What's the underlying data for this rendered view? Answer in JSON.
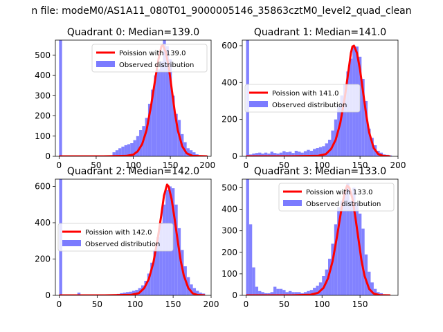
{
  "figure": {
    "suptitle": "n file: modeM0/AS1A11_080T01_9000005146_35863cztM0_level2_quad_clean"
  },
  "legend_labels": {
    "line_prefix": "Poission with ",
    "hist": "Observed distribution"
  },
  "colors": {
    "hist": "#7b7bff",
    "line": "#ff0000",
    "axis": "#000000"
  },
  "chart_data": [
    {
      "type": "bar",
      "title": "Quadrant 0: Median=139.0",
      "median": 139.0,
      "line_label": "Poission with 139.0",
      "legend_position": "upper-right",
      "xlim": [
        -5,
        205
      ],
      "ylim": [
        0,
        575
      ],
      "xticks": [
        0,
        50,
        100,
        150,
        200
      ],
      "yticks": [
        0,
        100,
        200,
        300,
        400,
        500
      ],
      "bin_width": 4,
      "hist": {
        "x": [
          0,
          4,
          8,
          12,
          16,
          20,
          24,
          28,
          32,
          36,
          40,
          44,
          48,
          52,
          56,
          60,
          64,
          68,
          72,
          76,
          80,
          84,
          88,
          92,
          96,
          100,
          104,
          108,
          112,
          116,
          120,
          124,
          128,
          132,
          136,
          140,
          144,
          148,
          152,
          156,
          160,
          164,
          168,
          172,
          176,
          180,
          184,
          188,
          192,
          196
        ],
        "values": [
          575,
          2,
          2,
          2,
          2,
          2,
          2,
          2,
          2,
          2,
          2,
          2,
          2,
          2,
          2,
          2,
          2,
          5,
          20,
          30,
          40,
          48,
          55,
          60,
          65,
          80,
          100,
          130,
          150,
          190,
          260,
          330,
          400,
          430,
          470,
          575,
          545,
          480,
          300,
          210,
          180,
          110,
          70,
          40,
          30,
          20,
          10,
          5,
          3,
          2
        ]
      },
      "poisson": {
        "x": [
          0,
          60,
          90,
          100,
          106,
          112,
          118,
          124,
          130,
          134,
          138,
          140,
          144,
          148,
          152,
          156,
          160,
          166,
          172,
          180,
          200
        ],
        "y": [
          0,
          0,
          2,
          8,
          25,
          60,
          130,
          250,
          390,
          480,
          545,
          550,
          515,
          440,
          330,
          220,
          130,
          50,
          15,
          2,
          0
        ]
      }
    },
    {
      "type": "bar",
      "title": "Quadrant 1: Median=141.0",
      "median": 141.0,
      "line_label": "Poission with 141.0",
      "legend_position": "center-left",
      "xlim": [
        -5,
        200
      ],
      "ylim": [
        0,
        630
      ],
      "xticks": [
        0,
        50,
        100,
        150,
        200
      ],
      "yticks": [
        0,
        200,
        400,
        600
      ],
      "bin_width": 4,
      "hist": {
        "x": [
          0,
          4,
          8,
          12,
          16,
          20,
          24,
          28,
          32,
          36,
          40,
          44,
          48,
          52,
          56,
          60,
          64,
          68,
          72,
          76,
          80,
          84,
          88,
          92,
          96,
          100,
          104,
          108,
          112,
          116,
          120,
          124,
          128,
          132,
          136,
          140,
          144,
          148,
          152,
          156,
          160,
          164,
          168,
          172,
          176,
          180,
          184,
          188
        ],
        "values": [
          630,
          10,
          15,
          18,
          20,
          15,
          20,
          15,
          25,
          18,
          15,
          20,
          28,
          22,
          25,
          18,
          30,
          25,
          20,
          28,
          35,
          30,
          40,
          45,
          50,
          55,
          70,
          90,
          140,
          200,
          270,
          330,
          390,
          460,
          530,
          600,
          595,
          540,
          420,
          300,
          150,
          100,
          60,
          30,
          20,
          10,
          8,
          5
        ]
      },
      "poisson": {
        "x": [
          0,
          60,
          95,
          105,
          112,
          118,
          124,
          130,
          134,
          138,
          140,
          142,
          146,
          150,
          154,
          158,
          162,
          168,
          174,
          180,
          190
        ],
        "y": [
          0,
          0,
          3,
          12,
          40,
          90,
          180,
          320,
          440,
          560,
          595,
          600,
          560,
          470,
          350,
          230,
          130,
          45,
          12,
          3,
          0
        ]
      }
    },
    {
      "type": "bar",
      "title": "Quadrant 2: Median=142.0",
      "median": 142.0,
      "line_label": "Poission with 142.0",
      "legend_position": "center-left",
      "xlim": [
        -5,
        200
      ],
      "ylim": [
        0,
        640
      ],
      "xticks": [
        0,
        50,
        100,
        150,
        200
      ],
      "yticks": [
        0,
        200,
        400,
        600
      ],
      "bin_width": 4,
      "hist": {
        "x": [
          0,
          4,
          8,
          12,
          16,
          20,
          24,
          28,
          32,
          36,
          40,
          44,
          48,
          52,
          56,
          60,
          64,
          68,
          72,
          76,
          80,
          84,
          88,
          92,
          96,
          100,
          104,
          108,
          112,
          116,
          120,
          124,
          128,
          132,
          136,
          140,
          144,
          148,
          152,
          156,
          160,
          164,
          168,
          172,
          176,
          180,
          184,
          188
        ],
        "values": [
          640,
          3,
          3,
          3,
          3,
          5,
          15,
          5,
          3,
          3,
          3,
          3,
          5,
          3,
          3,
          3,
          3,
          3,
          5,
          8,
          12,
          15,
          18,
          20,
          25,
          30,
          40,
          55,
          80,
          120,
          180,
          250,
          320,
          400,
          500,
          580,
          600,
          590,
          500,
          370,
          250,
          160,
          100,
          60,
          40,
          25,
          15,
          10
        ]
      },
      "poisson": {
        "x": [
          0,
          60,
          95,
          105,
          112,
          118,
          124,
          130,
          134,
          138,
          142,
          144,
          148,
          152,
          156,
          160,
          164,
          170,
          176,
          182,
          192
        ],
        "y": [
          0,
          0,
          3,
          12,
          40,
          90,
          180,
          320,
          430,
          550,
          610,
          600,
          530,
          420,
          300,
          190,
          110,
          40,
          10,
          2,
          0
        ]
      }
    },
    {
      "type": "bar",
      "title": "Quadrant 3: Median=133.0",
      "median": 133.0,
      "line_label": "Poission with 133.0",
      "legend_position": "upper-right",
      "xlim": [
        -5,
        200
      ],
      "ylim": [
        0,
        540
      ],
      "xticks": [
        0,
        50,
        100,
        150
      ],
      "yticks": [
        0,
        100,
        200,
        300,
        400,
        500
      ],
      "bin_width": 4,
      "hist": {
        "x": [
          0,
          4,
          8,
          12,
          16,
          20,
          24,
          28,
          32,
          36,
          40,
          44,
          48,
          52,
          56,
          60,
          64,
          68,
          72,
          76,
          80,
          84,
          88,
          92,
          96,
          100,
          104,
          108,
          112,
          116,
          120,
          124,
          128,
          132,
          136,
          140,
          144,
          148,
          152,
          156,
          160,
          164,
          168,
          172,
          176,
          180
        ],
        "values": [
          540,
          330,
          130,
          40,
          20,
          15,
          10,
          10,
          15,
          40,
          30,
          30,
          25,
          15,
          20,
          15,
          15,
          15,
          10,
          15,
          20,
          25,
          35,
          45,
          60,
          90,
          120,
          170,
          240,
          330,
          410,
          440,
          480,
          520,
          440,
          500,
          430,
          380,
          310,
          190,
          110,
          60,
          30,
          15,
          10,
          5
        ]
      },
      "poisson": {
        "x": [
          0,
          60,
          85,
          95,
          102,
          108,
          114,
          120,
          126,
          130,
          133,
          136,
          140,
          144,
          148,
          152,
          156,
          162,
          168,
          176,
          190
        ],
        "y": [
          0,
          0,
          3,
          12,
          35,
          80,
          160,
          280,
          410,
          480,
          510,
          500,
          450,
          360,
          260,
          160,
          90,
          30,
          8,
          1,
          0
        ]
      }
    }
  ]
}
